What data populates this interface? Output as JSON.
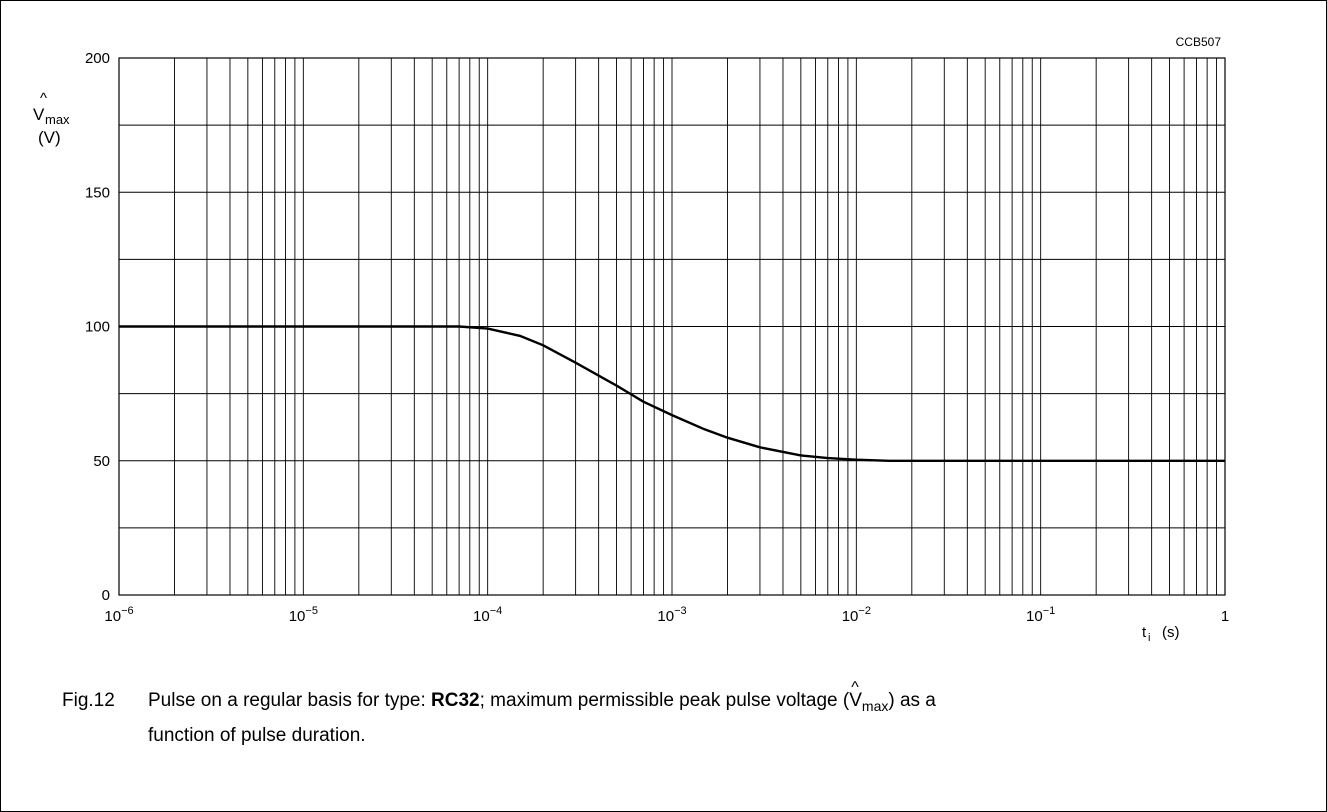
{
  "chart_data": {
    "type": "line",
    "code": "CCB507",
    "ylabel_symbol": "V",
    "ylabel_hat": "^",
    "ylabel_sub": "max",
    "ylabel_unit": "(V)",
    "xlabel_symbol": "t",
    "xlabel_sub": "i",
    "xlabel_unit": "(s)",
    "x_scale": "log",
    "xlim": [
      1e-06,
      1
    ],
    "ylim": [
      0,
      200
    ],
    "grid": true,
    "y_ticks": [
      {
        "value": 0,
        "label": "0"
      },
      {
        "value": 50,
        "label": "50"
      },
      {
        "value": 100,
        "label": "100"
      },
      {
        "value": 150,
        "label": "150"
      },
      {
        "value": 200,
        "label": "200"
      }
    ],
    "x_ticks": [
      {
        "value": 1e-06,
        "base": "10",
        "exp": "−6"
      },
      {
        "value": 1e-05,
        "base": "10",
        "exp": "−5"
      },
      {
        "value": 0.0001,
        "base": "10",
        "exp": "−4"
      },
      {
        "value": 0.001,
        "base": "10",
        "exp": "−3"
      },
      {
        "value": 0.01,
        "base": "10",
        "exp": "−2"
      },
      {
        "value": 0.1,
        "base": "10",
        "exp": "−1"
      },
      {
        "value": 1,
        "base": "1",
        "exp": ""
      }
    ],
    "series": [
      {
        "x": [
          1e-06,
          1e-05,
          5e-05,
          7e-05,
          0.0001,
          0.00015,
          0.0002,
          0.0003,
          0.0005,
          0.0007,
          0.001,
          0.0015,
          0.002,
          0.003,
          0.005,
          0.007,
          0.01,
          0.015,
          0.02,
          0.05,
          0.1,
          1
        ],
        "y": [
          100,
          100,
          100,
          100,
          99.2,
          96.5,
          93,
          86.5,
          78,
          72,
          67,
          61.7,
          58.6,
          55,
          52,
          51,
          50.4,
          50,
          50,
          50,
          50,
          50
        ]
      }
    ]
  },
  "caption": {
    "fig": "Fig.12",
    "text_before": "Pulse on a regular basis for type: ",
    "type_bold": "RC32",
    "text_mid": "; maximum permissible peak pulse voltage (",
    "v_symbol": "V",
    "v_hat": "^",
    "v_sub": "max",
    "text_after": ") as a",
    "line2": "function of pulse duration."
  }
}
